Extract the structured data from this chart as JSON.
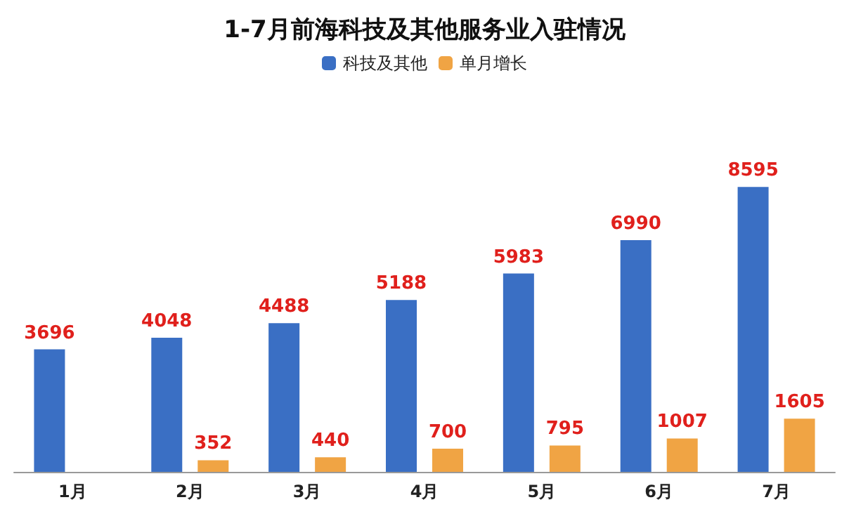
{
  "chart_data": {
    "type": "bar",
    "title": "1-7月前海科技及其他服务业入驻情况",
    "categories": [
      "1月",
      "2月",
      "3月",
      "4月",
      "5月",
      "6月",
      "7月"
    ],
    "series": [
      {
        "name": "科技及其他",
        "color": "#3a6fc4",
        "values": [
          3696,
          4048,
          4488,
          5188,
          5983,
          6990,
          8595
        ]
      },
      {
        "name": "单月增长",
        "color": "#f0a444",
        "values": [
          null,
          352,
          440,
          700,
          795,
          1007,
          1605
        ]
      }
    ],
    "data_labels": true,
    "legend": "top"
  }
}
